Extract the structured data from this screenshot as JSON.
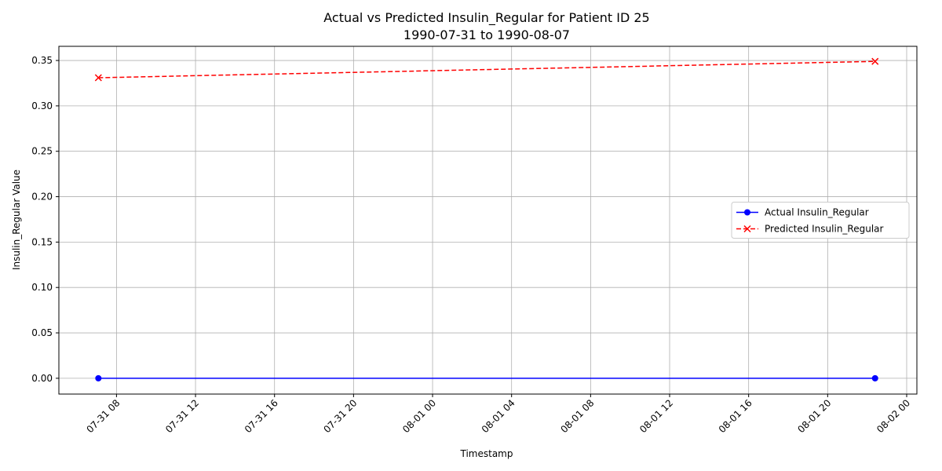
{
  "chart_data": {
    "type": "line",
    "title": "Actual vs Predicted Insulin_Regular for Patient ID 25",
    "subtitle": "1990-07-31 to 1990-08-07",
    "x_label": "Timestamp",
    "y_label": "Insulin_Regular Value",
    "x": [
      "07-31 07:05",
      "08-01 22:24"
    ],
    "series": [
      {
        "name": "Actual Insulin_Regular",
        "color": "#0000ff",
        "marker": "circle",
        "dash": "solid",
        "values": [
          0,
          0
        ]
      },
      {
        "name": "Predicted Insulin_Regular",
        "color": "#ff0000",
        "marker": "x",
        "dash": "dashed",
        "values": [
          0.331,
          0.349
        ]
      }
    ],
    "xlim": [
      "07-31 05:05",
      "08-02 00:31"
    ],
    "xticks": [
      "07-31 08",
      "07-31 12",
      "07-31 16",
      "07-31 20",
      "08-01 00",
      "08-01 04",
      "08-01 08",
      "08-01 12",
      "08-01 16",
      "08-01 20",
      "08-02 00"
    ],
    "ylim": [
      -0.0174,
      0.3656
    ],
    "yticks": [
      {
        "value": 0,
        "label": "0.00"
      },
      {
        "value": 0.05,
        "label": "0.05"
      },
      {
        "value": 0.1,
        "label": "0.10"
      },
      {
        "value": 0.15,
        "label": "0.15"
      },
      {
        "value": 0.2,
        "label": "0.20"
      },
      {
        "value": 0.25,
        "label": "0.25"
      },
      {
        "value": 0.3,
        "label": "0.30"
      },
      {
        "value": 0.35,
        "label": "0.35"
      }
    ],
    "grid": true,
    "legend": "center right"
  }
}
